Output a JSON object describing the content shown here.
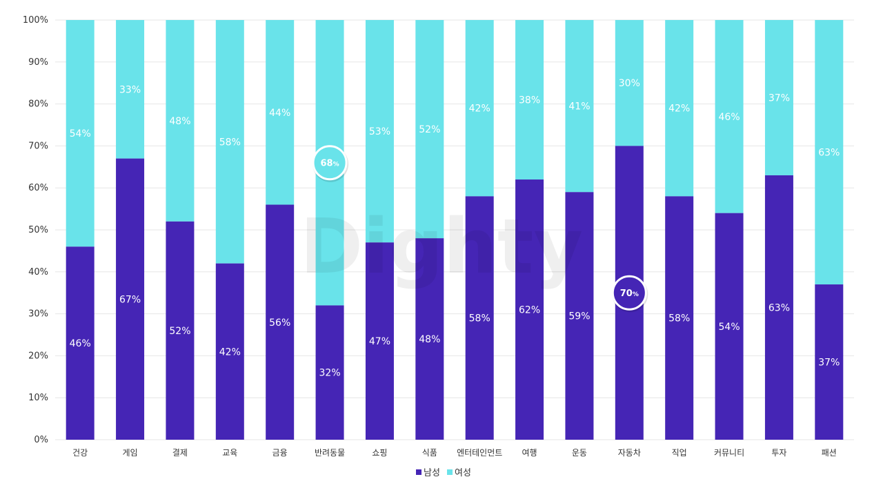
{
  "chart_data": {
    "type": "bar",
    "stacked": true,
    "categories": [
      "건강",
      "게임",
      "결제",
      "교육",
      "금융",
      "반려동물",
      "쇼핑",
      "식품",
      "엔터테인먼트",
      "여행",
      "운동",
      "자동차",
      "직업",
      "커뮤니티",
      "투자",
      "패션"
    ],
    "series": [
      {
        "name": "남성",
        "color": "#4525b5",
        "values": [
          46,
          67,
          52,
          42,
          56,
          32,
          47,
          48,
          58,
          62,
          59,
          70,
          58,
          54,
          63,
          37
        ]
      },
      {
        "name": "여성",
        "color": "#69e3ea",
        "values": [
          54,
          33,
          48,
          58,
          44,
          68,
          53,
          52,
          42,
          38,
          41,
          30,
          42,
          46,
          37,
          63
        ]
      }
    ],
    "data_labels": {
      "남성": [
        "46%",
        "67%",
        "52%",
        "42%",
        "56%",
        "32%",
        "47%",
        "48%",
        "58%",
        "62%",
        "59%",
        "70%",
        "58%",
        "54%",
        "63%",
        "37%"
      ],
      "여성": [
        "54%",
        "33%",
        "48%",
        "58%",
        "44%",
        "68%",
        "53%",
        "52%",
        "42%",
        "38%",
        "41%",
        "30%",
        "42%",
        "46%",
        "37%",
        "63%"
      ]
    },
    "highlights": [
      {
        "category": "반려동물",
        "series": "여성",
        "number": "68",
        "unit": "%"
      },
      {
        "category": "자동차",
        "series": "남성",
        "number": "70",
        "unit": "%"
      }
    ],
    "y_ticks": [
      "0%",
      "10%",
      "20%",
      "30%",
      "40%",
      "50%",
      "60%",
      "70%",
      "80%",
      "90%",
      "100%"
    ],
    "ylim": [
      0,
      100
    ],
    "grid": true,
    "legend_position": "bottom-center",
    "title": "",
    "xlabel": "",
    "ylabel": ""
  },
  "watermark": "Dighty"
}
